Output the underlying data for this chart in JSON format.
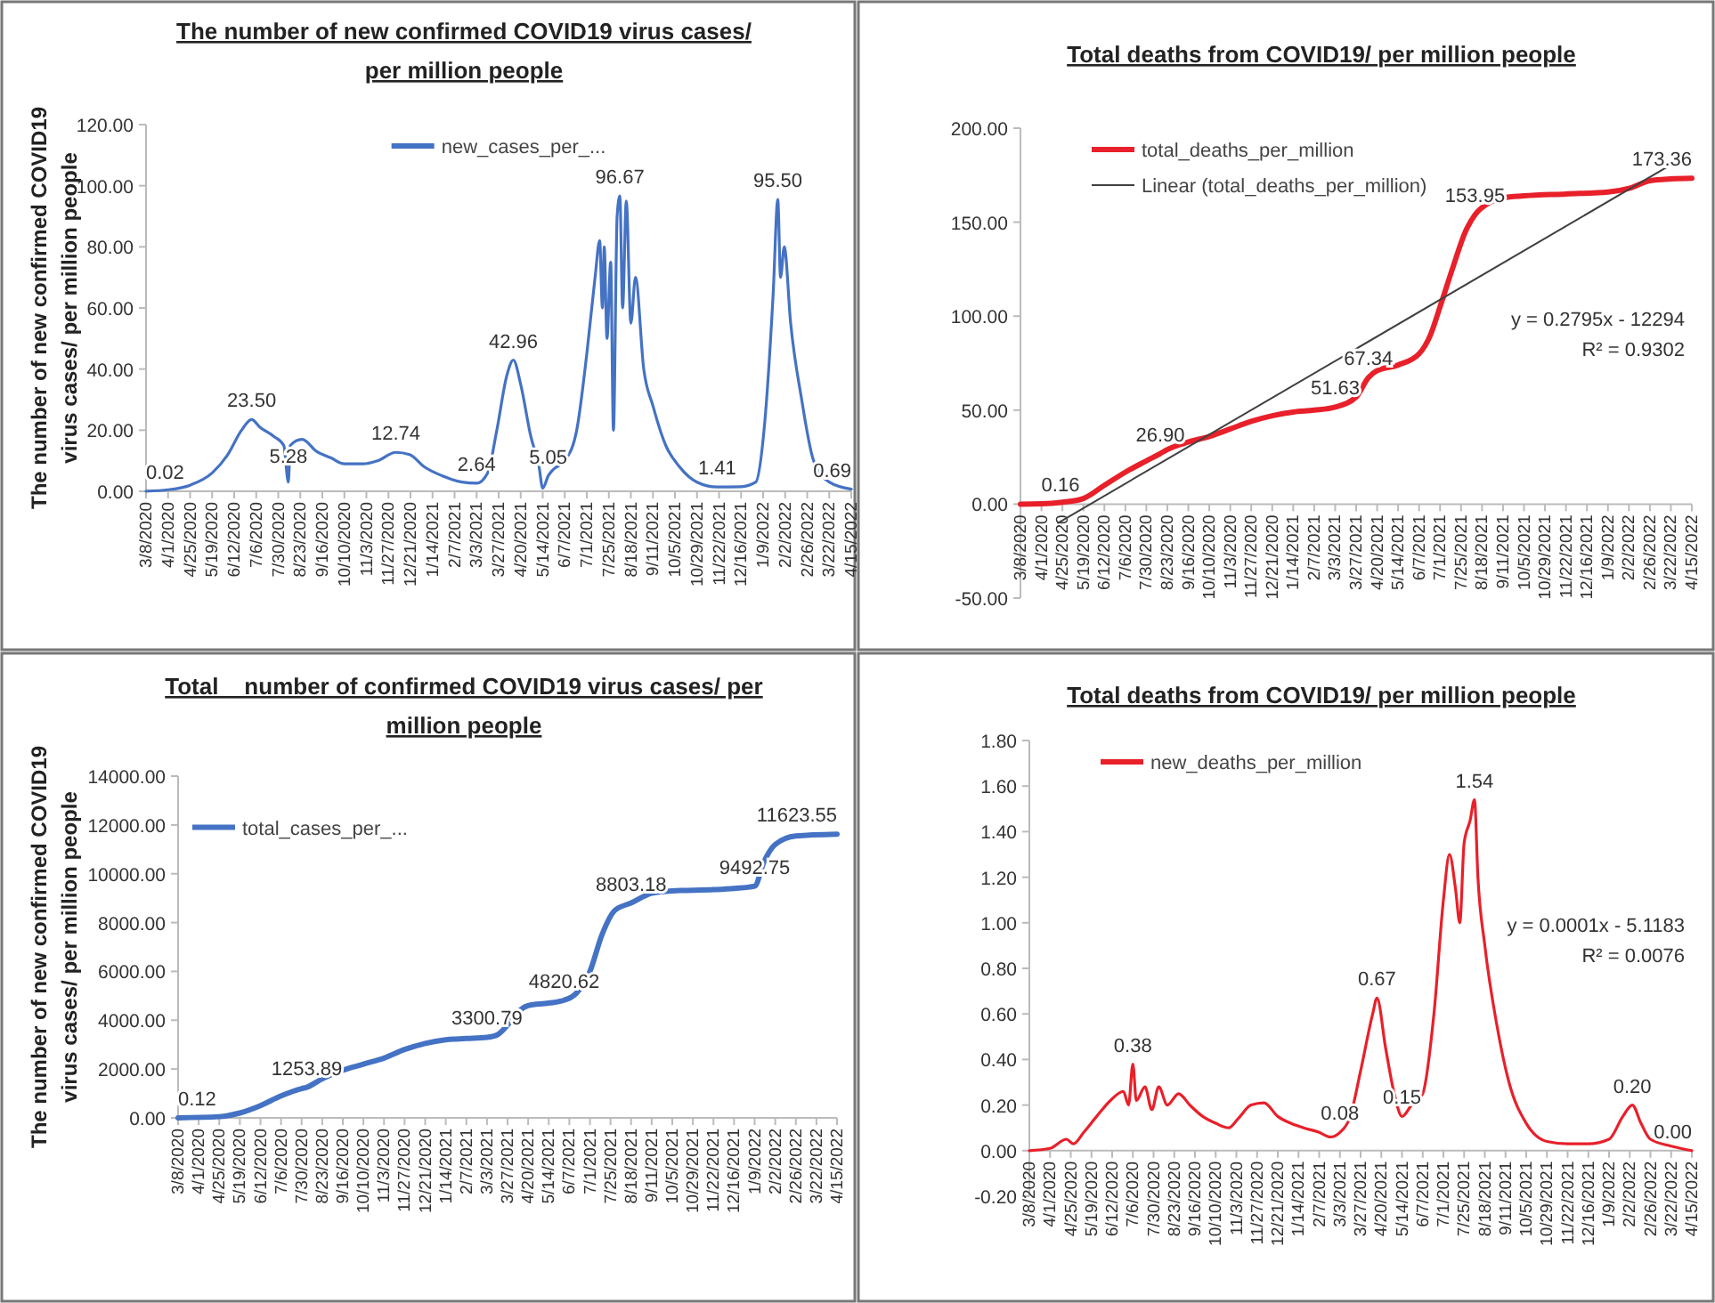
{
  "chart_data": [
    {
      "type": "line",
      "title": "The number of  new confirmed COVID19 virus cases/ per million people",
      "ylabel": "The number of  new confirmed COVID19 virus cases/ per million people",
      "legend": "top",
      "xlim": [
        "2020-03-08",
        "2022-04-15"
      ],
      "xticks": [
        {
          "value": "2020-03-08",
          "label": "3/8/2020"
        },
        {
          "value": "2020-04-01",
          "label": "4/1/2020"
        },
        {
          "value": "2020-04-25",
          "label": "4/25/2020"
        },
        {
          "value": "2020-05-19",
          "label": "5/19/2020"
        },
        {
          "value": "2020-06-12",
          "label": "6/12/2020"
        },
        {
          "value": "2020-07-06",
          "label": "7/6/2020"
        },
        {
          "value": "2020-07-30",
          "label": "7/30/2020"
        },
        {
          "value": "2020-08-23",
          "label": "8/23/2020"
        },
        {
          "value": "2020-09-16",
          "label": "9/16/2020"
        },
        {
          "value": "2020-10-10",
          "label": "10/10/2020"
        },
        {
          "value": "2020-11-03",
          "label": "11/3/2020"
        },
        {
          "value": "2020-11-27",
          "label": "11/27/2020"
        },
        {
          "value": "2020-12-21",
          "label": "12/21/2020"
        },
        {
          "value": "2021-01-14",
          "label": "1/14/2021"
        },
        {
          "value": "2021-02-07",
          "label": "2/7/2021"
        },
        {
          "value": "2021-03-03",
          "label": "3/3/2021"
        },
        {
          "value": "2021-03-27",
          "label": "3/27/2021"
        },
        {
          "value": "2021-04-20",
          "label": "4/20/2021"
        },
        {
          "value": "2021-05-14",
          "label": "5/14/2021"
        },
        {
          "value": "2021-06-07",
          "label": "6/7/2021"
        },
        {
          "value": "2021-07-01",
          "label": "7/1/2021"
        },
        {
          "value": "2021-07-25",
          "label": "7/25/2021"
        },
        {
          "value": "2021-08-18",
          "label": "8/18/2021"
        },
        {
          "value": "2021-09-11",
          "label": "9/11/2021"
        },
        {
          "value": "2021-10-05",
          "label": "10/5/2021"
        },
        {
          "value": "2021-10-29",
          "label": "10/29/2021"
        },
        {
          "value": "2021-11-22",
          "label": "11/22/2021"
        },
        {
          "value": "2021-12-16",
          "label": "12/16/2021"
        },
        {
          "value": "2022-01-09",
          "label": "1/9/2022"
        },
        {
          "value": "2022-02-02",
          "label": "2/2/2022"
        },
        {
          "value": "2022-02-26",
          "label": "2/26/2022"
        },
        {
          "value": "2022-03-22",
          "label": "3/22/2022"
        },
        {
          "value": "2022-04-15",
          "label": "4/15/2022"
        }
      ],
      "ylim": [
        0,
        120
      ],
      "yticks": [
        {
          "value": 0,
          "label": "0.00"
        },
        {
          "value": 20,
          "label": "20.00"
        },
        {
          "value": 40,
          "label": "40.00"
        },
        {
          "value": 60,
          "label": "60.00"
        },
        {
          "value": 80,
          "label": "80.00"
        },
        {
          "value": 100,
          "label": "100.00"
        },
        {
          "value": 120,
          "label": "120.00"
        }
      ],
      "series": [
        {
          "name": "new_cases_per_...",
          "color": "#4472c4",
          "x": [
            "2020-03-08",
            "2020-04-01",
            "2020-04-25",
            "2020-05-19",
            "2020-06-05",
            "2020-06-20",
            "2020-07-01",
            "2020-07-10",
            "2020-07-25",
            "2020-08-05",
            "2020-08-10",
            "2020-08-12",
            "2020-08-25",
            "2020-09-10",
            "2020-09-25",
            "2020-10-10",
            "2020-10-30",
            "2020-11-15",
            "2020-12-05",
            "2020-12-20",
            "2021-01-05",
            "2021-01-25",
            "2021-02-15",
            "2021-03-03",
            "2021-03-15",
            "2021-03-25",
            "2021-04-05",
            "2021-04-12",
            "2021-04-20",
            "2021-05-01",
            "2021-05-10",
            "2021-05-14",
            "2021-05-20",
            "2021-05-25",
            "2021-06-07",
            "2021-06-20",
            "2021-07-01",
            "2021-07-10",
            "2021-07-15",
            "2021-07-18",
            "2021-07-20",
            "2021-07-23",
            "2021-07-27",
            "2021-07-30",
            "2021-08-03",
            "2021-08-06",
            "2021-08-09",
            "2021-08-13",
            "2021-08-18",
            "2021-08-23",
            "2021-09-01",
            "2021-09-11",
            "2021-09-25",
            "2021-10-10",
            "2021-10-29",
            "2021-11-20",
            "2021-12-16",
            "2022-01-01",
            "2022-01-10",
            "2022-01-20",
            "2022-01-25",
            "2022-01-28",
            "2022-02-01",
            "2022-02-08",
            "2022-02-20",
            "2022-03-05",
            "2022-03-22",
            "2022-04-15"
          ],
          "values": [
            0.02,
            0.5,
            2,
            6,
            12,
            20,
            23.5,
            21,
            18,
            15,
            3,
            15,
            17,
            13,
            11,
            9,
            9,
            10,
            12.74,
            12,
            8,
            5,
            3,
            2.64,
            6,
            20,
            38,
            42.96,
            35,
            18,
            8,
            1,
            5.05,
            7,
            10,
            20,
            45,
            70,
            82,
            60,
            80,
            50,
            75,
            20,
            90,
            96.67,
            60,
            95,
            55,
            70,
            40,
            28,
            15,
            8,
            3,
            1.41,
            1.5,
            3,
            20,
            65,
            95.5,
            70,
            80,
            55,
            30,
            10,
            3,
            0.69
          ]
        }
      ],
      "annotations": [
        {
          "text": "0.02",
          "x": "2020-03-08",
          "y": 0.02
        },
        {
          "text": "23.50",
          "x": "2020-07-01",
          "y": 23.5
        },
        {
          "text": "5.28",
          "x": "2020-08-10",
          "y": 5.28
        },
        {
          "text": "12.74",
          "x": "2020-12-05",
          "y": 12.74
        },
        {
          "text": "2.64",
          "x": "2021-03-03",
          "y": 2.64
        },
        {
          "text": "42.96",
          "x": "2021-04-12",
          "y": 42.96
        },
        {
          "text": "5.05",
          "x": "2021-05-20",
          "y": 5.05
        },
        {
          "text": "96.67",
          "x": "2021-08-06",
          "y": 96.67
        },
        {
          "text": "1.41",
          "x": "2021-11-20",
          "y": 1.41
        },
        {
          "text": "95.50",
          "x": "2022-01-25",
          "y": 95.5
        },
        {
          "text": "0.69",
          "x": "2022-04-15",
          "y": 0.69
        }
      ]
    },
    {
      "type": "line",
      "title": "Total deaths from COVID19/ per million people",
      "legend": "top left",
      "xlim": [
        "2020-03-08",
        "2022-04-15"
      ],
      "xticks": [
        {
          "value": "2020-03-08",
          "label": "3/8/2020"
        },
        {
          "value": "2020-04-01",
          "label": "4/1/2020"
        },
        {
          "value": "2020-04-25",
          "label": "4/25/2020"
        },
        {
          "value": "2020-05-19",
          "label": "5/19/2020"
        },
        {
          "value": "2020-06-12",
          "label": "6/12/2020"
        },
        {
          "value": "2020-07-06",
          "label": "7/6/2020"
        },
        {
          "value": "2020-07-30",
          "label": "7/30/2020"
        },
        {
          "value": "2020-08-23",
          "label": "8/23/2020"
        },
        {
          "value": "2020-09-16",
          "label": "9/16/2020"
        },
        {
          "value": "2020-10-10",
          "label": "10/10/2020"
        },
        {
          "value": "2020-11-03",
          "label": "11/3/2020"
        },
        {
          "value": "2020-11-27",
          "label": "11/27/2020"
        },
        {
          "value": "2020-12-21",
          "label": "12/21/2020"
        },
        {
          "value": "2021-01-14",
          "label": "1/14/2021"
        },
        {
          "value": "2021-02-07",
          "label": "2/7/2021"
        },
        {
          "value": "2021-03-03",
          "label": "3/3/2021"
        },
        {
          "value": "2021-03-27",
          "label": "3/27/2021"
        },
        {
          "value": "2021-04-20",
          "label": "4/20/2021"
        },
        {
          "value": "2021-05-14",
          "label": "5/14/2021"
        },
        {
          "value": "2021-06-07",
          "label": "6/7/2021"
        },
        {
          "value": "2021-07-01",
          "label": "7/1/2021"
        },
        {
          "value": "2021-07-25",
          "label": "7/25/2021"
        },
        {
          "value": "2021-08-18",
          "label": "8/18/2021"
        },
        {
          "value": "2021-09-11",
          "label": "9/11/2021"
        },
        {
          "value": "2021-10-05",
          "label": "10/5/2021"
        },
        {
          "value": "2021-10-29",
          "label": "10/29/2021"
        },
        {
          "value": "2021-11-22",
          "label": "11/22/2021"
        },
        {
          "value": "2021-12-16",
          "label": "12/16/2021"
        },
        {
          "value": "2022-01-09",
          "label": "1/9/2022"
        },
        {
          "value": "2022-02-02",
          "label": "2/2/2022"
        },
        {
          "value": "2022-02-26",
          "label": "2/26/2022"
        },
        {
          "value": "2022-03-22",
          "label": "3/22/2022"
        },
        {
          "value": "2022-04-15",
          "label": "4/15/2022"
        }
      ],
      "ylim": [
        -50,
        200
      ],
      "yticks": [
        {
          "value": -50,
          "label": "-50.00"
        },
        {
          "value": 0,
          "label": "0.00"
        },
        {
          "value": 50,
          "label": "50.00"
        },
        {
          "value": 100,
          "label": "100.00"
        },
        {
          "value": 150,
          "label": "150.00"
        },
        {
          "value": 200,
          "label": "200.00"
        }
      ],
      "series": [
        {
          "name": "total_deaths_per_million",
          "color": "#e8202a",
          "x": [
            "2020-03-08",
            "2020-04-01",
            "2020-04-25",
            "2020-05-19",
            "2020-06-12",
            "2020-07-06",
            "2020-07-30",
            "2020-08-15",
            "2020-08-23",
            "2020-09-16",
            "2020-10-10",
            "2020-11-03",
            "2020-11-27",
            "2020-12-21",
            "2021-01-14",
            "2021-02-07",
            "2021-03-03",
            "2021-03-27",
            "2021-04-10",
            "2021-04-20",
            "2021-05-14",
            "2021-06-07",
            "2021-06-20",
            "2021-07-01",
            "2021-07-15",
            "2021-07-30",
            "2021-08-10",
            "2021-08-25",
            "2021-09-11",
            "2021-10-05",
            "2021-11-22",
            "2022-01-09",
            "2022-02-02",
            "2022-02-26",
            "2022-03-22",
            "2022-04-15"
          ],
          "values": [
            0,
            0.16,
            1,
            3,
            10,
            17,
            23,
            26.9,
            29,
            33,
            36,
            40,
            44,
            47,
            49,
            50,
            51.63,
            57,
            67.34,
            71,
            74,
            80,
            90,
            105,
            125,
            145,
            153.95,
            160,
            163,
            164,
            165,
            166,
            168,
            172,
            173,
            173.36
          ]
        },
        {
          "name": "Linear (total_deaths_per_million)",
          "color": "#404040",
          "type": "line",
          "x": [
            "2020-04-20",
            "2022-04-15"
          ],
          "values": [
            -10,
            187
          ]
        }
      ],
      "annotations": [
        {
          "text": "0.16",
          "x": "2020-04-01",
          "y": 0.16
        },
        {
          "text": "26.90",
          "x": "2020-08-15",
          "y": 26.9
        },
        {
          "text": "51.63",
          "x": "2021-03-03",
          "y": 51.63
        },
        {
          "text": "67.34",
          "x": "2021-04-10",
          "y": 67.34
        },
        {
          "text": "153.95",
          "x": "2021-08-10",
          "y": 153.95
        },
        {
          "text": "173.36",
          "x": "2022-04-15",
          "y": 173.36
        },
        "y = 0.2795x - 12294",
        "R² = 0.9302"
      ]
    },
    {
      "type": "line",
      "title": "Total _ number of confirmed COVID19 virus cases/ per million people",
      "ylabel": "The number of  new confirmed COVID19 virus cases/ per million people",
      "legend": "left",
      "xlim": [
        "2020-03-08",
        "2022-04-15"
      ],
      "xticks": [
        {
          "value": "2020-03-08",
          "label": "3/8/2020"
        },
        {
          "value": "2020-04-01",
          "label": "4/1/2020"
        },
        {
          "value": "2020-04-25",
          "label": "4/25/2020"
        },
        {
          "value": "2020-05-19",
          "label": "5/19/2020"
        },
        {
          "value": "2020-06-12",
          "label": "6/12/2020"
        },
        {
          "value": "2020-07-06",
          "label": "7/6/2020"
        },
        {
          "value": "2020-07-30",
          "label": "7/30/2020"
        },
        {
          "value": "2020-08-23",
          "label": "8/23/2020"
        },
        {
          "value": "2020-09-16",
          "label": "9/16/2020"
        },
        {
          "value": "2020-10-10",
          "label": "10/10/2020"
        },
        {
          "value": "2020-11-03",
          "label": "11/3/2020"
        },
        {
          "value": "2020-11-27",
          "label": "11/27/2020"
        },
        {
          "value": "2020-12-21",
          "label": "12/21/2020"
        },
        {
          "value": "2021-01-14",
          "label": "1/14/2021"
        },
        {
          "value": "2021-02-07",
          "label": "2/7/2021"
        },
        {
          "value": "2021-03-03",
          "label": "3/3/2021"
        },
        {
          "value": "2021-03-27",
          "label": "3/27/2021"
        },
        {
          "value": "2021-04-20",
          "label": "4/20/2021"
        },
        {
          "value": "2021-05-14",
          "label": "5/14/2021"
        },
        {
          "value": "2021-06-07",
          "label": "6/7/2021"
        },
        {
          "value": "2021-07-01",
          "label": "7/1/2021"
        },
        {
          "value": "2021-07-25",
          "label": "7/25/2021"
        },
        {
          "value": "2021-08-18",
          "label": "8/18/2021"
        },
        {
          "value": "2021-09-11",
          "label": "9/11/2021"
        },
        {
          "value": "2021-10-05",
          "label": "10/5/2021"
        },
        {
          "value": "2021-10-29",
          "label": "10/29/2021"
        },
        {
          "value": "2021-11-22",
          "label": "11/22/2021"
        },
        {
          "value": "2021-12-16",
          "label": "12/16/2021"
        },
        {
          "value": "2022-01-09",
          "label": "1/9/2022"
        },
        {
          "value": "2022-02-02",
          "label": "2/2/2022"
        },
        {
          "value": "2022-02-26",
          "label": "2/26/2022"
        },
        {
          "value": "2022-03-22",
          "label": "3/22/2022"
        },
        {
          "value": "2022-04-15",
          "label": "4/15/2022"
        }
      ],
      "ylim": [
        0,
        14000
      ],
      "yticks": [
        {
          "value": 0,
          "label": "0.00"
        },
        {
          "value": 2000,
          "label": "2000.00"
        },
        {
          "value": 4000,
          "label": "4000.00"
        },
        {
          "value": 6000,
          "label": "6000.00"
        },
        {
          "value": 8000,
          "label": "8000.00"
        },
        {
          "value": 10000,
          "label": "10000.00"
        },
        {
          "value": 12000,
          "label": "12000.00"
        },
        {
          "value": 14000,
          "label": "14000.00"
        }
      ],
      "series": [
        {
          "name": "total_cases_per_...",
          "color": "#4472c4",
          "x": [
            "2020-03-08",
            "2020-04-25",
            "2020-05-19",
            "2020-06-12",
            "2020-07-06",
            "2020-07-30",
            "2020-08-05",
            "2020-08-23",
            "2020-09-16",
            "2020-10-10",
            "2020-11-03",
            "2020-11-27",
            "2020-12-21",
            "2021-01-14",
            "2021-02-07",
            "2021-03-03",
            "2021-03-15",
            "2021-03-27",
            "2021-04-10",
            "2021-04-20",
            "2021-05-14",
            "2021-06-01",
            "2021-06-15",
            "2021-07-01",
            "2021-07-15",
            "2021-07-30",
            "2021-08-18",
            "2021-09-11",
            "2021-10-05",
            "2021-11-22",
            "2021-12-16",
            "2022-01-09",
            "2022-01-20",
            "2022-02-02",
            "2022-02-26",
            "2022-04-15"
          ],
          "values": [
            0.12,
            50,
            200,
            500,
            900,
            1200,
            1253.89,
            1600,
            1950,
            2200,
            2450,
            2800,
            3050,
            3200,
            3250,
            3300.79,
            3400,
            3800,
            4400,
            4600,
            4700,
            4820.62,
            5100,
            6000,
            7500,
            8500,
            8803.18,
            9200,
            9300,
            9350,
            9400,
            9492.75,
            10500,
            11200,
            11550,
            11623.55
          ]
        }
      ],
      "annotations": [
        {
          "text": "0.12",
          "x": "2020-03-08",
          "y": 0.12
        },
        {
          "text": "1253.89",
          "x": "2020-08-05",
          "y": 1253.89
        },
        {
          "text": "3300.79",
          "x": "2021-03-03",
          "y": 3300.79
        },
        {
          "text": "4820.62",
          "x": "2021-06-01",
          "y": 4820.62
        },
        {
          "text": "8803.18",
          "x": "2021-08-18",
          "y": 8803.18
        },
        {
          "text": "9492.75",
          "x": "2022-01-09",
          "y": 9492.75
        },
        {
          "text": "11623.55",
          "x": "2022-04-15",
          "y": 11623.55
        }
      ]
    },
    {
      "type": "line",
      "title": "Total deaths from COVID19/ per million people",
      "legend": "top left",
      "xlim": [
        "2020-03-08",
        "2022-04-15"
      ],
      "xticks": [
        {
          "value": "2020-03-08",
          "label": "3/8/2020"
        },
        {
          "value": "2020-04-01",
          "label": "4/1/2020"
        },
        {
          "value": "2020-04-25",
          "label": "4/25/2020"
        },
        {
          "value": "2020-05-19",
          "label": "5/19/2020"
        },
        {
          "value": "2020-06-12",
          "label": "6/12/2020"
        },
        {
          "value": "2020-07-06",
          "label": "7/6/2020"
        },
        {
          "value": "2020-07-30",
          "label": "7/30/2020"
        },
        {
          "value": "2020-08-23",
          "label": "8/23/2020"
        },
        {
          "value": "2020-09-16",
          "label": "9/16/2020"
        },
        {
          "value": "2020-10-10",
          "label": "10/10/2020"
        },
        {
          "value": "2020-11-03",
          "label": "11/3/2020"
        },
        {
          "value": "2020-11-27",
          "label": "11/27/2020"
        },
        {
          "value": "2020-12-21",
          "label": "12/21/2020"
        },
        {
          "value": "2021-01-14",
          "label": "1/14/2021"
        },
        {
          "value": "2021-02-07",
          "label": "2/7/2021"
        },
        {
          "value": "2021-03-03",
          "label": "3/3/2021"
        },
        {
          "value": "2021-03-27",
          "label": "3/27/2021"
        },
        {
          "value": "2021-04-20",
          "label": "4/20/2021"
        },
        {
          "value": "2021-05-14",
          "label": "5/14/2021"
        },
        {
          "value": "2021-06-07",
          "label": "6/7/2021"
        },
        {
          "value": "2021-07-01",
          "label": "7/1/2021"
        },
        {
          "value": "2021-07-25",
          "label": "7/25/2021"
        },
        {
          "value": "2021-08-18",
          "label": "8/18/2021"
        },
        {
          "value": "2021-09-11",
          "label": "9/11/2021"
        },
        {
          "value": "2021-10-05",
          "label": "10/5/2021"
        },
        {
          "value": "2021-10-29",
          "label": "10/29/2021"
        },
        {
          "value": "2021-11-22",
          "label": "11/22/2021"
        },
        {
          "value": "2021-12-16",
          "label": "12/16/2021"
        },
        {
          "value": "2022-01-09",
          "label": "1/9/2022"
        },
        {
          "value": "2022-02-02",
          "label": "2/2/2022"
        },
        {
          "value": "2022-02-26",
          "label": "2/26/2022"
        },
        {
          "value": "2022-03-22",
          "label": "3/22/2022"
        },
        {
          "value": "2022-04-15",
          "label": "4/15/2022"
        }
      ],
      "ylim": [
        -0.2,
        1.8
      ],
      "yticks": [
        {
          "value": -0.2,
          "label": "-0.20"
        },
        {
          "value": 0,
          "label": "0.00"
        },
        {
          "value": 0.2,
          "label": "0.20"
        },
        {
          "value": 0.4,
          "label": "0.40"
        },
        {
          "value": 0.6,
          "label": "0.60"
        },
        {
          "value": 0.8,
          "label": "0.80"
        },
        {
          "value": 1,
          "label": "1.00"
        },
        {
          "value": 1.2,
          "label": "1.20"
        },
        {
          "value": 1.4,
          "label": "1.40"
        },
        {
          "value": 1.6,
          "label": "1.60"
        },
        {
          "value": 1.8,
          "label": "1.80"
        }
      ],
      "series": [
        {
          "name": "new_deaths_per_million",
          "color": "#e8202a",
          "x": [
            "2020-03-08",
            "2020-04-01",
            "2020-04-20",
            "2020-04-28",
            "2020-05-10",
            "2020-05-25",
            "2020-06-10",
            "2020-06-25",
            "2020-07-01",
            "2020-07-06",
            "2020-07-10",
            "2020-07-20",
            "2020-07-28",
            "2020-08-05",
            "2020-08-15",
            "2020-08-28",
            "2020-09-10",
            "2020-09-25",
            "2020-10-10",
            "2020-10-25",
            "2020-11-05",
            "2020-11-20",
            "2020-12-05",
            "2020-12-21",
            "2021-01-05",
            "2021-01-20",
            "2021-02-07",
            "2021-02-20",
            "2021-03-03",
            "2021-03-15",
            "2021-03-27",
            "2021-04-10",
            "2021-04-15",
            "2021-04-25",
            "2021-05-05",
            "2021-05-14",
            "2021-05-25",
            "2021-06-07",
            "2021-06-20",
            "2021-07-01",
            "2021-07-08",
            "2021-07-15",
            "2021-07-20",
            "2021-07-25",
            "2021-08-01",
            "2021-08-06",
            "2021-08-10",
            "2021-08-18",
            "2021-09-01",
            "2021-09-15",
            "2021-10-05",
            "2021-10-29",
            "2021-11-22",
            "2021-12-16",
            "2022-01-09",
            "2022-01-25",
            "2022-02-05",
            "2022-02-15",
            "2022-02-26",
            "2022-03-22",
            "2022-04-15"
          ],
          "values": [
            0,
            0.01,
            0.05,
            0.03,
            0.08,
            0.15,
            0.22,
            0.26,
            0.2,
            0.38,
            0.22,
            0.28,
            0.18,
            0.28,
            0.2,
            0.25,
            0.2,
            0.15,
            0.12,
            0.1,
            0.14,
            0.2,
            0.21,
            0.15,
            0.12,
            0.1,
            0.08,
            0.06,
            0.08,
            0.15,
            0.35,
            0.6,
            0.67,
            0.45,
            0.25,
            0.15,
            0.2,
            0.25,
            0.6,
            1.1,
            1.3,
            1.15,
            1,
            1.35,
            1.45,
            1.54,
            1.2,
            0.9,
            0.55,
            0.3,
            0.12,
            0.04,
            0.03,
            0.03,
            0.05,
            0.15,
            0.2,
            0.12,
            0.05,
            0.02,
            0
          ]
        }
      ],
      "annotations": [
        {
          "text": "0.38",
          "x": "2020-07-06",
          "y": 0.38
        },
        {
          "text": "0.08",
          "x": "2021-03-03",
          "y": 0.08
        },
        {
          "text": "0.67",
          "x": "2021-04-15",
          "y": 0.67
        },
        {
          "text": "0.15",
          "x": "2021-05-14",
          "y": 0.15
        },
        {
          "text": "1.54",
          "x": "2021-08-06",
          "y": 1.54
        },
        {
          "text": "0.20",
          "x": "2022-02-05",
          "y": 0.2
        },
        {
          "text": "0.00",
          "x": "2022-04-15",
          "y": 0
        },
        "y = 0.0001x - 5.1183",
        "R² = 0.0076"
      ]
    }
  ]
}
